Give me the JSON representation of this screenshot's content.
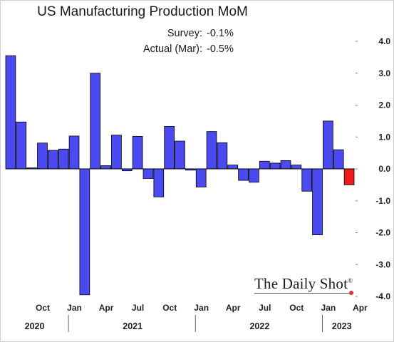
{
  "chart_data": {
    "type": "bar",
    "title": "US Manufacturing Production MoM",
    "annotations": [
      {
        "label": "Survey:",
        "value": "-0.1%"
      },
      {
        "label": "Actual (Mar):",
        "value": "-0.5%"
      }
    ],
    "ylim": [
      -4.0,
      4.0
    ],
    "yticks": [
      "4.0",
      "3.0",
      "2.0",
      "1.0",
      "0.0",
      "-1.0",
      "-2.0",
      "-3.0",
      "-4.0"
    ],
    "xtick_labels": [
      "Oct",
      "Jan",
      "Apr",
      "Jul",
      "Oct",
      "Jan",
      "Apr",
      "Jul",
      "Oct",
      "Jan",
      "Apr"
    ],
    "year_labels": [
      "2020",
      "2021",
      "2022",
      "2023"
    ],
    "grid": false,
    "colors": {
      "bar": "#4a4af0",
      "highlight": "#ee1c1c",
      "edge": "#000000"
    },
    "months": [
      "2020-07",
      "2020-08",
      "2020-09",
      "2020-10",
      "2020-11",
      "2020-12",
      "2021-01",
      "2021-02",
      "2021-03",
      "2021-04",
      "2021-05",
      "2021-06",
      "2021-07",
      "2021-08",
      "2021-09",
      "2021-10",
      "2021-11",
      "2021-12",
      "2022-01",
      "2022-02",
      "2022-03",
      "2022-04",
      "2022-05",
      "2022-06",
      "2022-07",
      "2022-08",
      "2022-09",
      "2022-10",
      "2022-11",
      "2022-12",
      "2023-01",
      "2023-02",
      "2023-03"
    ],
    "values": [
      3.55,
      1.47,
      0.03,
      0.81,
      0.58,
      0.62,
      1.03,
      -3.95,
      3.0,
      0.1,
      1.06,
      -0.06,
      1.02,
      -0.3,
      -0.88,
      1.33,
      0.87,
      -0.04,
      -0.57,
      1.17,
      0.82,
      0.12,
      -0.36,
      -0.42,
      0.24,
      0.18,
      0.26,
      0.12,
      -0.7,
      -2.07,
      1.5,
      0.6,
      -0.5
    ]
  },
  "watermark": "The Daily Shot",
  "watermark_mark": "®"
}
